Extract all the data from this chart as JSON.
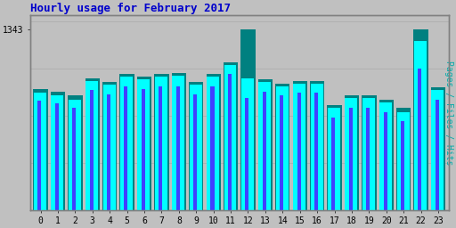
{
  "title": "Hourly usage for February 2017",
  "ylabel_rotated": "Pages / Files / Hits",
  "ytick_label": "1343",
  "hours": [
    0,
    1,
    2,
    3,
    4,
    5,
    6,
    7,
    8,
    9,
    10,
    11,
    12,
    13,
    14,
    15,
    16,
    17,
    18,
    19,
    20,
    21,
    22,
    23
  ],
  "pages": [
    900,
    880,
    850,
    980,
    950,
    1010,
    990,
    1010,
    1020,
    950,
    1010,
    1100,
    1343,
    970,
    940,
    960,
    960,
    780,
    850,
    850,
    820,
    760,
    1343,
    910
  ],
  "files": [
    870,
    850,
    820,
    960,
    930,
    990,
    970,
    990,
    1000,
    930,
    990,
    1080,
    980,
    950,
    920,
    940,
    940,
    760,
    830,
    830,
    800,
    730,
    1260,
    890
  ],
  "hits": [
    810,
    790,
    760,
    890,
    860,
    920,
    900,
    920,
    920,
    860,
    920,
    1010,
    830,
    880,
    850,
    870,
    870,
    690,
    760,
    760,
    730,
    660,
    1050,
    820
  ],
  "pages_color": "#008080",
  "files_color": "#00ffff",
  "hits_color": "#4040ff",
  "bg_color": "#c0c0c0",
  "plot_bg": "#c0c0c0",
  "title_color": "#0000cc",
  "ylabel_color": "#00aaaa",
  "tick_color": "#000000",
  "border_color": "#808080",
  "bar_width": 0.3,
  "ylim_max": 1450,
  "ylim_min": 0
}
